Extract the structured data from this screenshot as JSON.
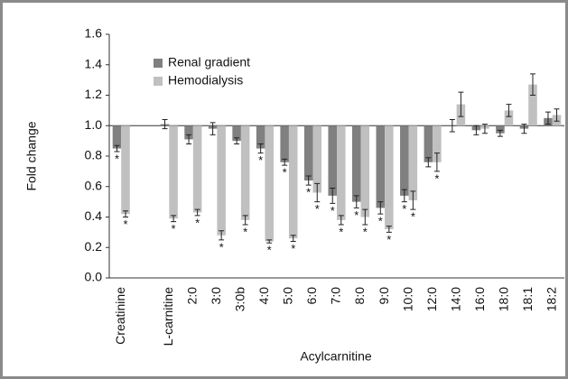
{
  "chart_data": {
    "type": "bar",
    "xlabel": "Acylcarnitine",
    "ylabel": "Fold change",
    "categories": [
      "Creatinine",
      null,
      "L-carnitine",
      "2:0",
      "3:0",
      "3:0b",
      "4:0",
      "5:0",
      "6:0",
      "7:0",
      "8:0",
      "9:0",
      "10:0",
      "12:0",
      "14:0",
      "16:0",
      "18:0",
      "18:1",
      "18:2"
    ],
    "baseline": 1.0,
    "series": [
      {
        "name": "Renal gradient",
        "color": "#808080",
        "values": [
          0.85,
          null,
          1.01,
          0.91,
          0.98,
          0.9,
          0.85,
          0.76,
          0.64,
          0.54,
          0.5,
          0.46,
          0.54,
          0.76,
          1.0,
          0.97,
          0.95,
          0.98,
          1.05
        ],
        "errors": [
          0.02,
          null,
          0.03,
          0.03,
          0.04,
          0.02,
          0.03,
          0.02,
          0.03,
          0.05,
          0.04,
          0.04,
          0.04,
          0.03,
          0.04,
          0.03,
          0.02,
          0.03,
          0.04
        ],
        "markers": [
          "*",
          null,
          null,
          null,
          null,
          null,
          "*",
          "*",
          "*",
          "*",
          "*",
          "*",
          "*",
          null,
          null,
          null,
          null,
          null,
          null
        ]
      },
      {
        "name": "Hemodialysis",
        "color": "#c0c0c0",
        "values": [
          0.42,
          null,
          0.39,
          0.43,
          0.28,
          0.38,
          0.24,
          0.26,
          0.56,
          0.38,
          0.4,
          0.32,
          0.51,
          0.76,
          1.14,
          0.98,
          1.1,
          1.27,
          1.07
        ],
        "errors": [
          0.02,
          null,
          0.02,
          0.02,
          0.03,
          0.03,
          0.01,
          0.02,
          0.06,
          0.03,
          0.05,
          0.02,
          0.06,
          0.06,
          0.08,
          0.03,
          0.04,
          0.07,
          0.04
        ],
        "markers": [
          "*",
          "*",
          "*",
          "*",
          "*",
          "*",
          "*",
          "*",
          "*",
          "*",
          "*",
          "*",
          "*",
          "*",
          null,
          null,
          null,
          null,
          null
        ]
      }
    ],
    "ylim": [
      0,
      1.6
    ],
    "yticks": [
      {
        "value": 0,
        "label": "0.0"
      },
      0.2,
      0.4,
      0.6,
      0.8,
      {
        "value": 1,
        "label": "1.0"
      },
      1.2,
      1.4,
      1.6
    ],
    "legend": "upper left"
  }
}
